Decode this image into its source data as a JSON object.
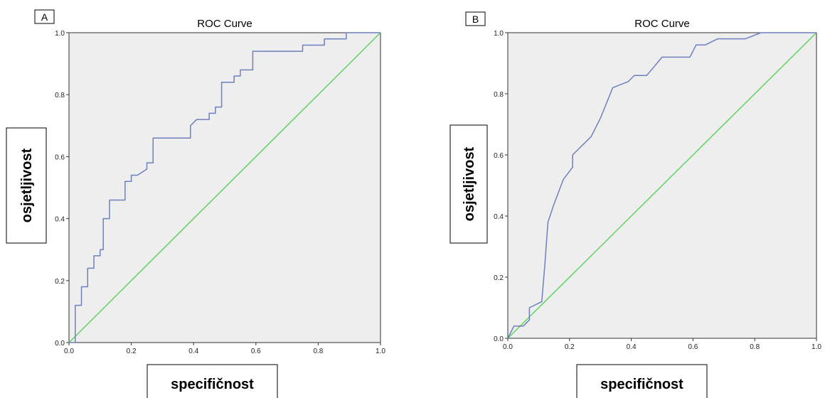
{
  "chart_data": [
    {
      "type": "line",
      "panel_label": "A",
      "title": "ROC Curve",
      "xlabel": "specifičnost",
      "ylabel": "osjetljivost",
      "xlim": [
        0.0,
        1.0
      ],
      "ylim": [
        0.0,
        1.0
      ],
      "x_ticks": [
        "0.0",
        "0.2",
        "0.4",
        "0.6",
        "0.8",
        "1.0"
      ],
      "y_ticks": [
        "0.0",
        "0.2",
        "0.4",
        "0.6",
        "0.8",
        "1.0"
      ],
      "grid": false,
      "colors": {
        "roc": "#6f7fbf",
        "reference": "#5fd35f",
        "plot_bg": "#eeeeee"
      },
      "series": [
        {
          "x": [
            0.0,
            0.02,
            0.02,
            0.04,
            0.04,
            0.06,
            0.06,
            0.08,
            0.08,
            0.1,
            0.1,
            0.11,
            0.11,
            0.13,
            0.13,
            0.18,
            0.18,
            0.2,
            0.2,
            0.22,
            0.25,
            0.25,
            0.27,
            0.27,
            0.39,
            0.39,
            0.41,
            0.45,
            0.45,
            0.47,
            0.47,
            0.49,
            0.49,
            0.53,
            0.53,
            0.55,
            0.55,
            0.59,
            0.59,
            0.75,
            0.75,
            0.82,
            0.82,
            0.89,
            0.89,
            1.0
          ],
          "y": [
            0.0,
            0.0,
            0.12,
            0.12,
            0.18,
            0.18,
            0.24,
            0.24,
            0.28,
            0.28,
            0.3,
            0.3,
            0.4,
            0.4,
            0.46,
            0.46,
            0.52,
            0.52,
            0.54,
            0.54,
            0.56,
            0.58,
            0.58,
            0.66,
            0.66,
            0.7,
            0.72,
            0.72,
            0.74,
            0.74,
            0.76,
            0.76,
            0.84,
            0.84,
            0.86,
            0.86,
            0.88,
            0.88,
            0.94,
            0.94,
            0.96,
            0.96,
            0.98,
            0.98,
            1.0,
            1.0
          ]
        },
        {
          "x": [
            0.0,
            1.0
          ],
          "y": [
            0.0,
            1.0
          ]
        }
      ]
    },
    {
      "type": "line",
      "panel_label": "B",
      "title": "ROC Curve",
      "xlabel": "specifičnost",
      "ylabel": "osjetljivost",
      "xlim": [
        0.0,
        1.0
      ],
      "ylim": [
        0.0,
        1.0
      ],
      "x_ticks": [
        "0.0",
        "0.2",
        "0.4",
        "0.6",
        "0.8",
        "1.0"
      ],
      "y_ticks": [
        "0.0",
        "0.2",
        "0.4",
        "0.6",
        "0.8",
        "1.0"
      ],
      "grid": false,
      "colors": {
        "roc": "#6f7fbf",
        "reference": "#5fd35f",
        "plot_bg": "#eeeeee"
      },
      "series": [
        {
          "x": [
            0.0,
            0.02,
            0.05,
            0.07,
            0.07,
            0.11,
            0.12,
            0.13,
            0.13,
            0.15,
            0.18,
            0.21,
            0.21,
            0.23,
            0.27,
            0.3,
            0.34,
            0.39,
            0.41,
            0.45,
            0.5,
            0.59,
            0.61,
            0.64,
            0.68,
            0.7,
            0.77,
            0.82,
            0.89,
            1.0
          ],
          "y": [
            0.0,
            0.04,
            0.04,
            0.06,
            0.1,
            0.12,
            0.24,
            0.38,
            0.38,
            0.44,
            0.52,
            0.56,
            0.6,
            0.62,
            0.66,
            0.72,
            0.82,
            0.84,
            0.86,
            0.86,
            0.92,
            0.92,
            0.96,
            0.96,
            0.98,
            0.98,
            0.98,
            1.0,
            1.0,
            1.0
          ]
        },
        {
          "x": [
            0.0,
            1.0
          ],
          "y": [
            0.0,
            1.0
          ]
        }
      ]
    }
  ]
}
